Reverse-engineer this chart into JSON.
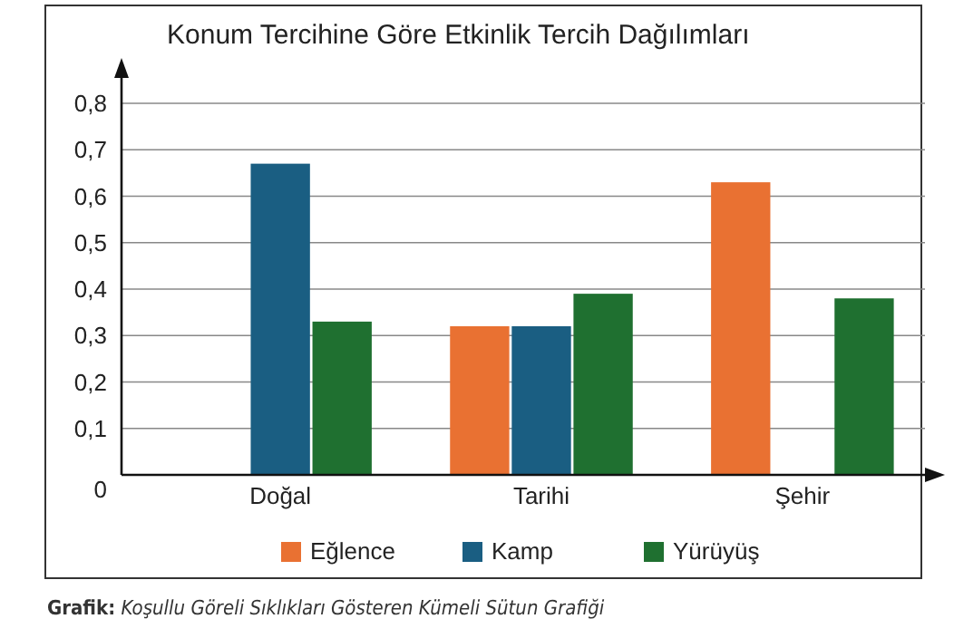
{
  "chart_data": {
    "type": "bar",
    "title": "Konum Tercihine Göre Etkinlik Tercih Dağılımları",
    "categories": [
      "Doğal",
      "Tarihi",
      "Şehir"
    ],
    "series": [
      {
        "name": "Eğlence",
        "color": "#e97132",
        "values": [
          0,
          0.32,
          0.63
        ]
      },
      {
        "name": "Kamp",
        "color": "#1a5e82",
        "values": [
          0.67,
          0.32,
          0
        ]
      },
      {
        "name": "Yürüyüş",
        "color": "#1f7030",
        "values": [
          0.33,
          0.39,
          0.38
        ]
      }
    ],
    "ylim": [
      0,
      0.8
    ],
    "yticks": [
      0,
      {
        "value": 0.1,
        "label": "0,1"
      },
      {
        "value": 0.2,
        "label": "0,2"
      },
      {
        "value": 0.3,
        "label": "0,3"
      },
      {
        "value": 0.4,
        "label": "0,4"
      },
      {
        "value": 0.5,
        "label": "0,5"
      },
      {
        "value": 0.6,
        "label": "0,6"
      },
      {
        "value": 0.7,
        "label": "0,7"
      },
      {
        "value": 0.8,
        "label": "0,8"
      }
    ],
    "grid": "y",
    "legend": "bottom",
    "annotations": [
      "Grafik: Koşullu Göreli Sıklıkları Gösteren Kümeli Sütun Grafiği"
    ]
  }
}
